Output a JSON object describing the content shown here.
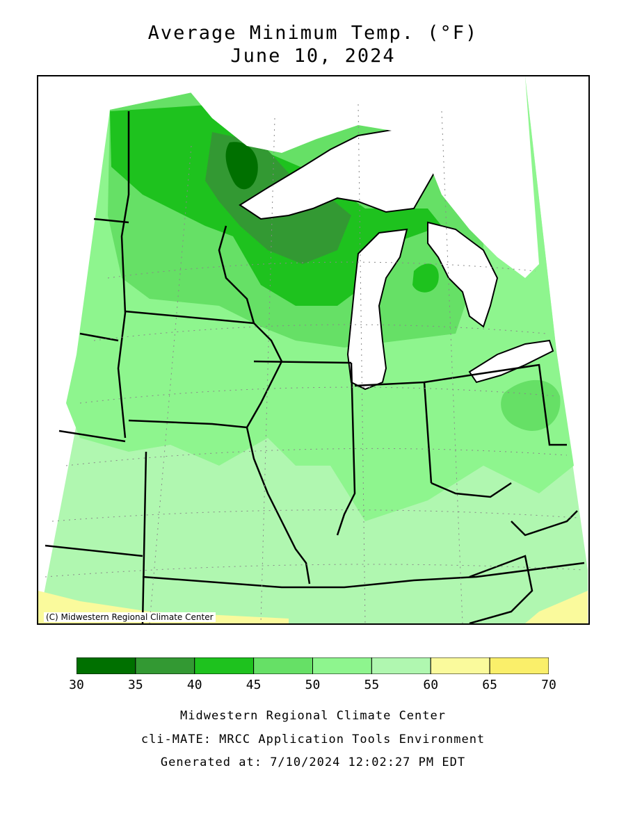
{
  "title": {
    "line1": "Average Minimum Temp. (°F)",
    "line2": "June 10, 2024"
  },
  "map": {
    "copyright": "(C) Midwestern Regional Climate Center",
    "fill_colors": {
      "30-35": "#007000",
      "35-40": "#339933",
      "40-45": "#1ec21e",
      "45-50": "#66e066",
      "50-55": "#8ef58e",
      "55-60": "#b0f7b0",
      "60-65": "#fafa9c",
      "65-70": "#faef6a",
      "water": "#ffffff",
      "boundary": "#000000"
    }
  },
  "legend": {
    "ticks": [
      "30",
      "35",
      "40",
      "45",
      "50",
      "55",
      "60",
      "65",
      "70"
    ],
    "colors": [
      "#007000",
      "#339933",
      "#1ec21e",
      "#66e066",
      "#8ef58e",
      "#b0f7b0",
      "#fafa9c",
      "#faef6a"
    ]
  },
  "footer": {
    "line1": "Midwestern Regional Climate Center",
    "line2": "cli-MATE: MRCC Application Tools Environment",
    "line3": "Generated at: 7/10/2024 12:02:27 PM EDT"
  }
}
